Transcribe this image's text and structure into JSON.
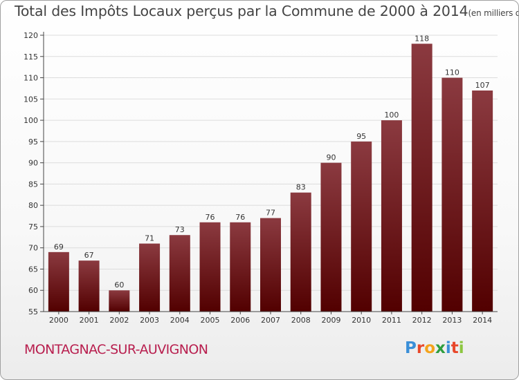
{
  "title": {
    "main": "Total des Impôts Locaux perçus par la Commune de 2000 à 2014",
    "unit": "(en milliers d'€)"
  },
  "commune": "MONTAGNAC-SUR-AUVIGNON",
  "logo": {
    "letters": [
      "P",
      "r",
      "o",
      "x",
      "i",
      "t",
      "i"
    ],
    "colors": [
      "#3a8fd8",
      "#e8472a",
      "#f4a31c",
      "#2e9e3e",
      "#3a8fd8",
      "#e8472a",
      "#8cc63f"
    ]
  },
  "colors": {
    "bar_top": "#8b3a40",
    "bar_bottom": "#520000",
    "axis": "#444444",
    "grid": "#dcdcdc"
  },
  "chart_data": {
    "type": "bar",
    "title": "Total des Impôts Locaux perçus par la Commune de 2000 à 2014",
    "xlabel": "",
    "ylabel": "",
    "categories": [
      "2000",
      "2001",
      "2002",
      "2003",
      "2004",
      "2005",
      "2006",
      "2007",
      "2008",
      "2009",
      "2010",
      "2011",
      "2012",
      "2013",
      "2014"
    ],
    "values": [
      69,
      67,
      60,
      71,
      73,
      76,
      76,
      77,
      83,
      90,
      95,
      100,
      118,
      110,
      107
    ],
    "ylim": [
      55,
      120
    ],
    "yticks": [
      55,
      60,
      65,
      70,
      75,
      80,
      85,
      90,
      95,
      100,
      105,
      110,
      115,
      120
    ],
    "grid": true
  }
}
